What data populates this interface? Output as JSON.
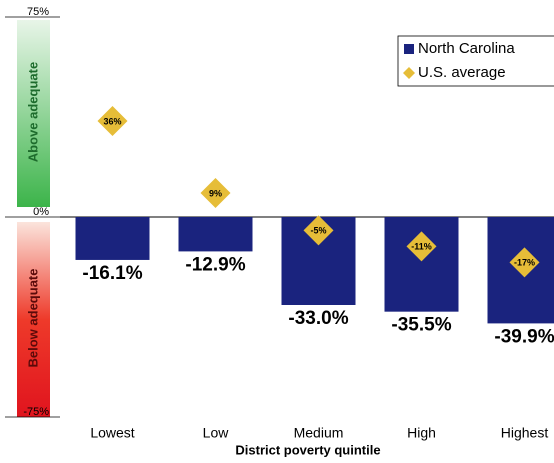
{
  "chart_data": {
    "type": "bar",
    "xlabel": "District poverty quintile",
    "categories": [
      "Lowest",
      "Low",
      "Medium",
      "High",
      "Highest"
    ],
    "series": [
      {
        "name": "North Carolina",
        "type": "bar",
        "color": "#1a237e",
        "values": [
          -16.1,
          -12.9,
          -33.0,
          -35.5,
          -39.9
        ],
        "value_labels": [
          "-16.1%",
          "-12.9%",
          "-33.0%",
          "-35.5%",
          "-39.9%"
        ]
      },
      {
        "name": "U.S. average",
        "type": "diamond",
        "color": "#e6bd38",
        "values": [
          36,
          9,
          -5,
          -11,
          -17
        ],
        "value_labels": [
          "36%",
          "9%",
          "-5%",
          "-11%",
          "-17%"
        ]
      }
    ],
    "ylim": [
      -75,
      75
    ],
    "yticks": [
      {
        "value": -75,
        "label": "-75%"
      },
      {
        "value": 0,
        "label": "0%"
      },
      {
        "value": 75,
        "label": "75%"
      }
    ],
    "annotations": [
      "Above adequate",
      "Below adequate"
    ],
    "legend": "upper right"
  }
}
